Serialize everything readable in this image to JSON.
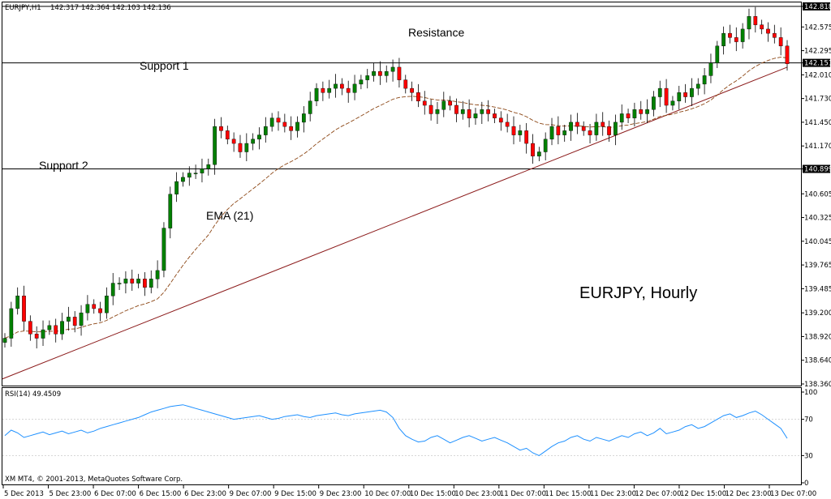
{
  "header": {
    "symbol": "EURJPY,H1",
    "ohlc": "142.317 142.364 142.103 142.136"
  },
  "indicator_label": "RSI(14) 49.4509",
  "copyright": "XM MT4, © 2001-2013, MetaQuotes Software Corp.",
  "annotations": {
    "resistance": "Resistance",
    "support1": "Support 1",
    "support2": "Support 2",
    "ema": "EMA (21)",
    "title": "EURJPY, Hourly"
  },
  "colors": {
    "bull": "#008000",
    "bear": "#ff0000",
    "ema": "#8b4513",
    "trendline": "#8b1a1a",
    "rsi": "#1e90ff",
    "hline": "#000000"
  },
  "chart_data": {
    "type": "candlestick",
    "price_axis": {
      "ylim": [
        138.36,
        142.855
      ],
      "ticks": [
        "142.818",
        "142.575",
        "142.295",
        "142.151",
        "142.010",
        "141.730",
        "141.450",
        "141.170",
        "140.899",
        "140.605",
        "140.325",
        "140.045",
        "139.765",
        "139.485",
        "139.200",
        "138.920",
        "138.640",
        "138.360"
      ]
    },
    "highlighted_levels": [
      "142.818",
      "142.151",
      "140.899"
    ],
    "horizontal_lines": [
      142.818,
      142.151,
      140.899
    ],
    "x_ticks": [
      "5 Dec 2013",
      "5 Dec 23:00",
      "6 Dec 07:00",
      "6 Dec 15:00",
      "6 Dec 23:00",
      "9 Dec 07:00",
      "9 Dec 15:00",
      "9 Dec 23:00",
      "10 Dec 07:00",
      "10 Dec 15:00",
      "10 Dec 23:00",
      "11 Dec 07:00",
      "11 Dec 15:00",
      "11 Dec 23:00",
      "12 Dec 07:00",
      "12 Dec 15:00",
      "12 Dec 23:00",
      "13 Dec 07:00"
    ],
    "trendline": {
      "start": 138.42,
      "end": 142.1
    },
    "closes": [
      138.9,
      139.25,
      139.4,
      139.1,
      138.95,
      138.9,
      139.0,
      139.05,
      138.95,
      139.1,
      139.15,
      139.05,
      139.2,
      139.3,
      139.25,
      139.2,
      139.4,
      139.55,
      139.55,
      139.6,
      139.55,
      139.6,
      139.5,
      139.6,
      139.7,
      140.2,
      140.6,
      140.75,
      140.8,
      140.85,
      140.85,
      140.9,
      140.95,
      141.4,
      141.35,
      141.25,
      141.2,
      141.1,
      141.2,
      141.25,
      141.3,
      141.4,
      141.5,
      141.45,
      141.4,
      141.35,
      141.45,
      141.55,
      141.7,
      141.85,
      141.8,
      141.85,
      141.9,
      141.85,
      141.8,
      141.9,
      141.95,
      142.0,
      142.05,
      142.0,
      142.05,
      142.1,
      141.95,
      141.85,
      141.8,
      141.7,
      141.65,
      141.55,
      141.6,
      141.7,
      141.65,
      141.55,
      141.6,
      141.5,
      141.55,
      141.6,
      141.55,
      141.5,
      141.45,
      141.4,
      141.3,
      141.35,
      141.2,
      141.05,
      141.1,
      141.25,
      141.4,
      141.3,
      141.35,
      141.45,
      141.4,
      141.35,
      141.3,
      141.45,
      141.4,
      141.3,
      141.45,
      141.55,
      141.5,
      141.6,
      141.55,
      141.6,
      141.75,
      141.85,
      141.65,
      141.7,
      141.8,
      141.75,
      141.85,
      141.9,
      142.0,
      142.15,
      142.35,
      142.5,
      142.45,
      142.4,
      142.55,
      142.7,
      142.6,
      142.55,
      142.5,
      142.45,
      142.35,
      142.14
    ],
    "rsi": {
      "ylim": [
        0,
        100
      ],
      "ticks": [
        "100",
        "70",
        "30",
        "0"
      ],
      "values": [
        52,
        58,
        55,
        50,
        52,
        54,
        56,
        53,
        55,
        57,
        54,
        56,
        58,
        55,
        57,
        60,
        62,
        64,
        66,
        68,
        70,
        72,
        75,
        78,
        80,
        82,
        84,
        85,
        86,
        84,
        82,
        80,
        78,
        76,
        74,
        72,
        70,
        71,
        72,
        73,
        74,
        72,
        70,
        71,
        73,
        74,
        75,
        73,
        72,
        74,
        75,
        76,
        77,
        75,
        74,
        76,
        77,
        78,
        79,
        80,
        78,
        72,
        60,
        52,
        48,
        45,
        46,
        50,
        52,
        48,
        44,
        47,
        50,
        52,
        49,
        46,
        48,
        50,
        47,
        44,
        40,
        36,
        38,
        33,
        30,
        35,
        40,
        44,
        46,
        50,
        52,
        48,
        46,
        50,
        48,
        46,
        49,
        52,
        50,
        54,
        56,
        52,
        55,
        60,
        54,
        56,
        58,
        62,
        64,
        60,
        62,
        66,
        70,
        74,
        76,
        72,
        74,
        77,
        79,
        75,
        70,
        65,
        60,
        49
      ]
    }
  }
}
